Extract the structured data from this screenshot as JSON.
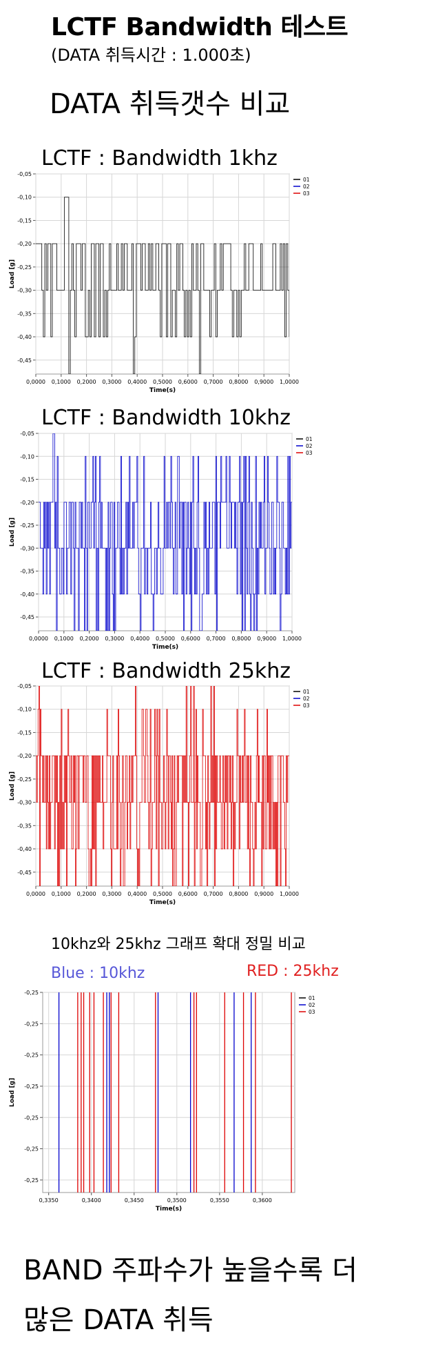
{
  "header": {
    "title": "LCTF Bandwidth 테스트",
    "subtitle": "(DATA 취득시간 : 1.000초)",
    "section": "DATA 취득갯수 비교"
  },
  "charts": [
    {
      "heading": "LCTF : Bandwidth  1khz"
    },
    {
      "heading": "LCTF : Bandwidth  10khz"
    },
    {
      "heading": "LCTF : Bandwidth  25khz"
    }
  ],
  "zoom": {
    "heading": "10khz와 25khz 그래프 확대 정밀 비교",
    "blue_note": "Blue : 10khz",
    "red_note": "RED : 25khz"
  },
  "footer": {
    "line1": "BAND 주파수가 높을수록 더",
    "line2": "많은 DATA 취득"
  },
  "colors": {
    "s01": "#000000",
    "s02": "#0000cc",
    "s03": "#dd0000",
    "grid": "#d6d6d6"
  },
  "chart_data": [
    {
      "type": "line",
      "title": "",
      "xlabel": "Time(s)",
      "ylabel": "Load [g]",
      "xlim": [
        0,
        1
      ],
      "ylim": [
        -0.48,
        -0.05
      ],
      "x_ticks": [
        "0,0000",
        "0,1000",
        "0,2000",
        "0,3000",
        "0,4000",
        "0,5000",
        "0,6000",
        "0,7000",
        "0,8000",
        "0,9000",
        "1,0000"
      ],
      "y_ticks": [
        "-0,05",
        "-0,10",
        "-0,15",
        "-0,20",
        "-0,25",
        "-0,30",
        "-0,35",
        "-0,40",
        "-0,45"
      ],
      "legend": [
        "01",
        "02",
        "03"
      ],
      "legend_position": "top-right",
      "grid": true,
      "series": [
        {
          "name": "01",
          "color": "#000000",
          "density": 170,
          "seed": 11,
          "values": [
            -0.2,
            -0.3,
            -0.4
          ],
          "spikes": [
            [
              0.108,
              -0.1
            ],
            [
              0.112,
              -0.1
            ],
            [
              0.118,
              -0.1
            ],
            [
              0.126,
              -0.48
            ],
            [
              0.38,
              -0.48
            ],
            [
              0.64,
              -0.48
            ]
          ]
        },
        {
          "name": "02",
          "values": []
        },
        {
          "name": "03",
          "values": []
        }
      ]
    },
    {
      "type": "line",
      "title": "",
      "xlabel": "Time(s)",
      "ylabel": "Load [g]",
      "xlim": [
        0,
        1
      ],
      "ylim": [
        -0.48,
        -0.05
      ],
      "x_ticks": [
        "0,0000",
        "0,1000",
        "0,2000",
        "0,3000",
        "0,4000",
        "0,5000",
        "0,6000",
        "0,7000",
        "0,8000",
        "0,9000",
        "1,0000"
      ],
      "y_ticks": [
        "-0,05",
        "-0,10",
        "-0,15",
        "-0,20",
        "-0,25",
        "-0,30",
        "-0,35",
        "-0,40",
        "-0,45"
      ],
      "legend": [
        "01",
        "02",
        "03"
      ],
      "legend_position": "top-right",
      "grid": true,
      "series": [
        {
          "name": "01",
          "values": []
        },
        {
          "name": "02",
          "color": "#0000cc",
          "density": 300,
          "seed": 23,
          "values": [
            -0.1,
            -0.2,
            -0.3,
            -0.4,
            -0.48
          ],
          "spikes": [
            [
              0.055,
              -0.05
            ],
            [
              0.06,
              -0.05
            ],
            [
              0.07,
              -0.48
            ],
            [
              0.19,
              -0.48
            ],
            [
              0.3,
              -0.48
            ],
            [
              0.4,
              -0.48
            ],
            [
              0.6,
              -0.48
            ],
            [
              0.7,
              -0.48
            ],
            [
              0.8,
              -0.48
            ],
            [
              0.95,
              -0.48
            ]
          ]
        },
        {
          "name": "03",
          "values": []
        }
      ]
    },
    {
      "type": "line",
      "title": "",
      "xlabel": "Time(s)",
      "ylabel": "Load [g]",
      "xlim": [
        0,
        1
      ],
      "ylim": [
        -0.48,
        -0.05
      ],
      "x_ticks": [
        "0,0000",
        "0,1000",
        "0,2000",
        "0,3000",
        "0,4000",
        "0,5000",
        "0,6000",
        "0,7000",
        "0,8000",
        "0,9000",
        "1,0000"
      ],
      "y_ticks": [
        "-0,05",
        "-0,10",
        "-0,15",
        "-0,20",
        "-0,25",
        "-0,30",
        "-0,35",
        "-0,40",
        "-0,45"
      ],
      "legend": [
        "01",
        "02",
        "03"
      ],
      "legend_position": "top-right",
      "grid": true,
      "series": [
        {
          "name": "01",
          "values": []
        },
        {
          "name": "02",
          "values": []
        },
        {
          "name": "03",
          "color": "#dd0000",
          "density": 340,
          "seed": 37,
          "values": [
            -0.1,
            -0.2,
            -0.3,
            -0.4,
            -0.48
          ],
          "spikes": [
            [
              0.01,
              -0.05
            ],
            [
              0.39,
              -0.05
            ],
            [
              0.59,
              -0.05
            ],
            [
              0.61,
              -0.05
            ],
            [
              0.62,
              -0.05
            ],
            [
              0.69,
              -0.05
            ],
            [
              0.7,
              -0.05
            ],
            [
              0.01,
              -0.48
            ],
            [
              0.21,
              -0.48
            ],
            [
              0.4,
              -0.48
            ],
            [
              0.55,
              -0.48
            ],
            [
              0.6,
              -0.48
            ],
            [
              0.62,
              -0.48
            ],
            [
              0.7,
              -0.48
            ],
            [
              0.95,
              -0.48
            ]
          ]
        }
      ]
    },
    {
      "type": "line",
      "title": "",
      "xlabel": "Time(s)",
      "ylabel": "Load [g]",
      "xlim": [
        0.3343,
        0.3638
      ],
      "y_ticks": [
        "-0,25",
        "-0,25",
        "-0,25",
        "-0,25",
        "-0,25",
        "-0,25",
        "-0,25"
      ],
      "x_ticks": [
        "0,3350",
        "0,3400",
        "0,3450",
        "0,3500",
        "0,3550",
        "0,3600"
      ],
      "x_tick_values": [
        0.335,
        0.34,
        0.345,
        0.35,
        0.355,
        0.36
      ],
      "legend": [
        "01",
        "02",
        "03"
      ],
      "legend_position": "top-right",
      "grid": true,
      "series": [
        {
          "name": "01",
          "values": []
        },
        {
          "name": "02",
          "color": "#0000cc",
          "transitions_x": [
            0.3362,
            0.3418,
            0.3421,
            0.3478,
            0.3516,
            0.3567,
            0.3587
          ]
        },
        {
          "name": "03",
          "color": "#dd0000",
          "transitions_x": [
            0.3384,
            0.3388,
            0.3391,
            0.3398,
            0.3403,
            0.3414,
            0.3423,
            0.3432,
            0.3475,
            0.352,
            0.3523,
            0.3556,
            0.3578,
            0.3592,
            0.3634
          ]
        }
      ]
    }
  ]
}
